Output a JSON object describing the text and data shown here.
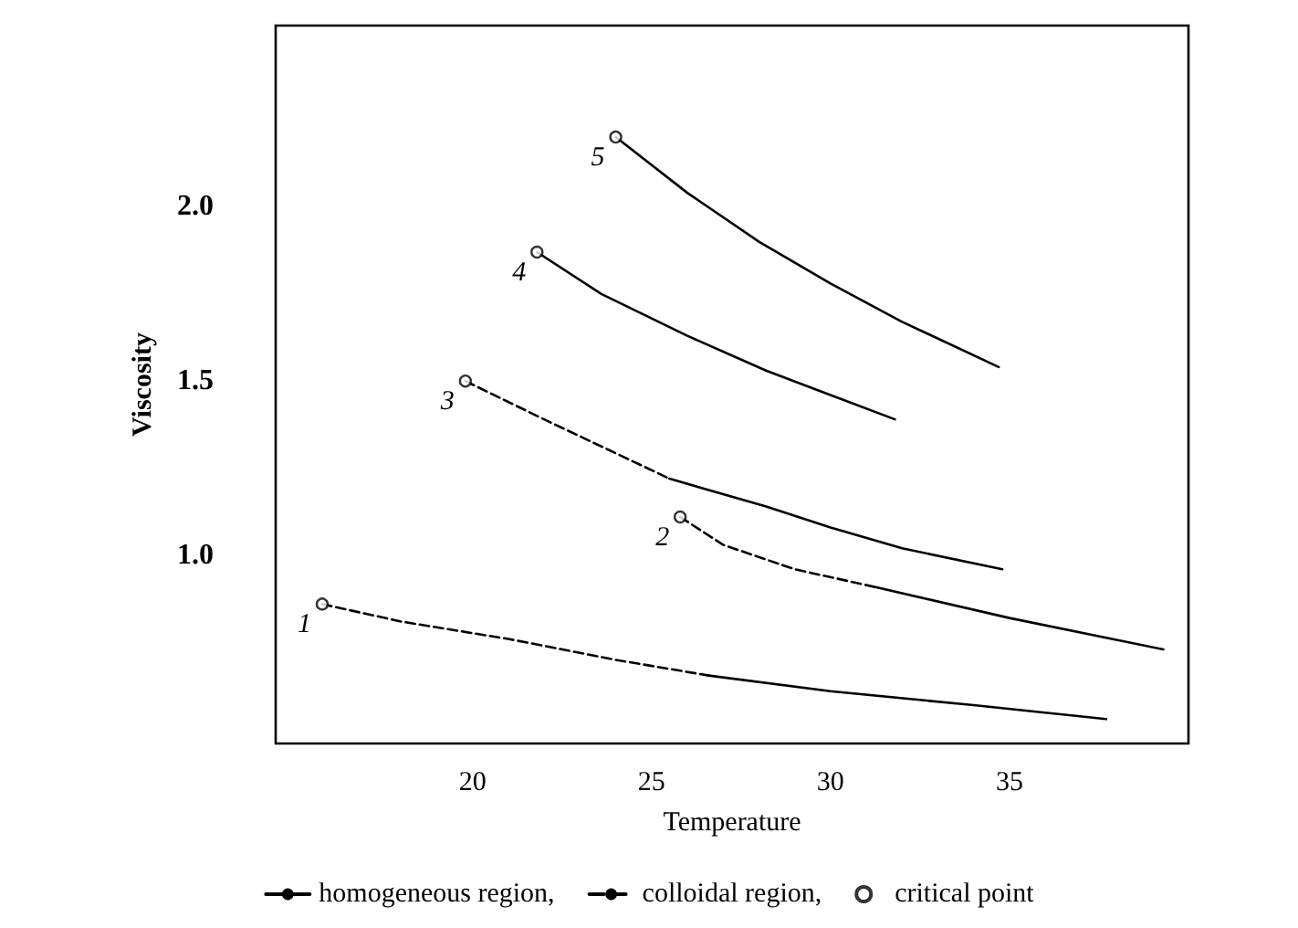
{
  "chart_data": {
    "type": "line",
    "xlabel": "Temperature",
    "ylabel": "Viscosity",
    "xlim": [
      14.5,
      40
    ],
    "ylim": [
      0.46,
      2.52
    ],
    "xticks": [
      20,
      25,
      30,
      35
    ],
    "yticks": [
      {
        "value": 1,
        "label": "1.0"
      },
      {
        "value": 1.5,
        "label": "1.5"
      },
      {
        "value": 2,
        "label": "2.0"
      }
    ],
    "grid": false,
    "legend": "bottom",
    "marker": "none",
    "series": [
      {
        "name": "homogeneous region,",
        "color": "#000000",
        "line_style": "solid",
        "x": [
          26.6,
          30,
          34,
          37.7
        ],
        "values": [
          0.655,
          0.61,
          0.57,
          0.53
        ]
      },
      {
        "name": "colloidal region,",
        "color": "#000000",
        "line_style": "dashed",
        "x": [
          15.8,
          18,
          21,
          24,
          26.6
        ],
        "values": [
          0.86,
          0.81,
          0.76,
          0.7,
          0.655
        ]
      },
      {
        "color": "#000000",
        "line_style": "dashed",
        "x": [
          25.8,
          27,
          29,
          31.2
        ],
        "values": [
          1.11,
          1.03,
          0.96,
          0.91
        ]
      },
      {
        "color": "#000000",
        "line_style": "solid",
        "x": [
          31.2,
          35,
          39.3
        ],
        "values": [
          0.91,
          0.82,
          0.73
        ]
      },
      {
        "color": "#000000",
        "line_style": "dashed",
        "x": [
          19.8,
          22,
          25.5
        ],
        "values": [
          1.5,
          1.39,
          1.22
        ]
      },
      {
        "color": "#000000",
        "line_style": "solid",
        "x": [
          25.5,
          28.2,
          30,
          32,
          34.8
        ],
        "values": [
          1.22,
          1.14,
          1.08,
          1.02,
          0.96
        ]
      },
      {
        "color": "#000000",
        "line_style": "solid",
        "x": [
          21.8,
          23.6,
          26,
          28.2,
          30,
          31.8
        ],
        "values": [
          1.87,
          1.75,
          1.63,
          1.53,
          1.46,
          1.39
        ]
      },
      {
        "color": "#000000",
        "line_style": "solid",
        "x": [
          24,
          26,
          28,
          30,
          32,
          34.7
        ],
        "values": [
          2.2,
          2.04,
          1.9,
          1.78,
          1.67,
          1.54
        ]
      },
      {
        "name": "critical point",
        "type": "scatter",
        "marker": "circle",
        "color": "#000000",
        "x": [
          15.8,
          25.8,
          19.8,
          21.8,
          24
        ],
        "values": [
          0.86,
          1.11,
          1.5,
          1.87,
          2.2
        ]
      }
    ],
    "annotations": [
      {
        "text": "1",
        "x": 15.8,
        "y": 0.86
      },
      {
        "text": "2",
        "x": 25.8,
        "y": 1.11
      },
      {
        "text": "3",
        "x": 19.8,
        "y": 1.5
      },
      {
        "text": "4",
        "x": 21.8,
        "y": 1.87
      },
      {
        "text": "5",
        "x": 24,
        "y": 2.2
      }
    ]
  }
}
